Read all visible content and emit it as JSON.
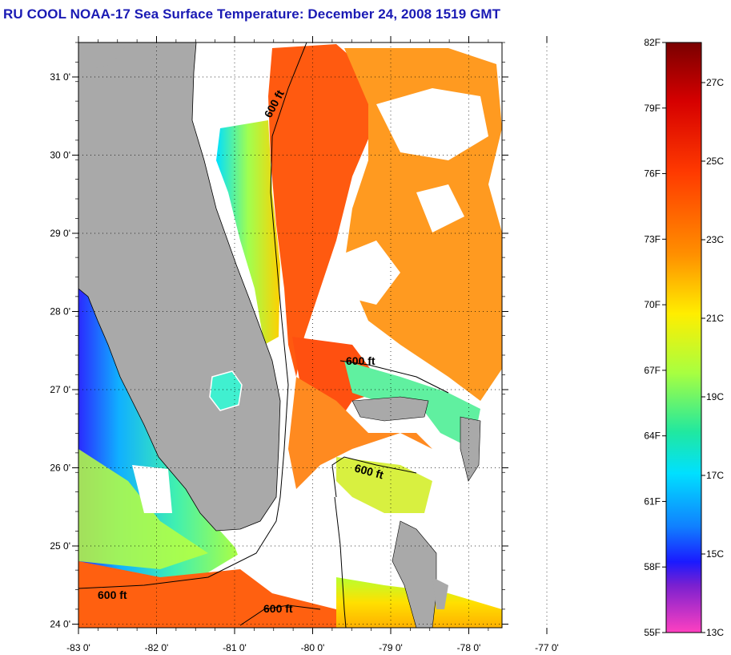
{
  "title": "RU COOL  NOAA-17  Sea Surface Temperature:  December 24, 2008 1519 GMT",
  "map": {
    "lat_ticks": [
      "31 0'",
      "30 0'",
      "29 0'",
      "28 0'",
      "27 0'",
      "26 0'",
      "25 0'",
      "24 0'"
    ],
    "lon_ticks": [
      "-83 0'",
      "-82 0'",
      "-81 0'",
      "-80 0'",
      "-79 0'",
      "-78 0'",
      "-77 0'"
    ],
    "contour_label": "600 ft",
    "land_color": "#a9a9a9"
  },
  "colorbar": {
    "fahrenheit": [
      "82F",
      "79F",
      "76F",
      "73F",
      "70F",
      "67F",
      "64F",
      "61F",
      "58F",
      "55F"
    ],
    "celsius": [
      "27C",
      "25C",
      "23C",
      "21C",
      "19C",
      "17C",
      "15C",
      "13C"
    ],
    "colors": [
      "#7a0000",
      "#d60000",
      "#ff4000",
      "#ff8c00",
      "#ffe000",
      "#b8ff30",
      "#30e890",
      "#00e0ff",
      "#1080ff",
      "#1020ff",
      "#8020d0",
      "#ff40c0"
    ]
  }
}
